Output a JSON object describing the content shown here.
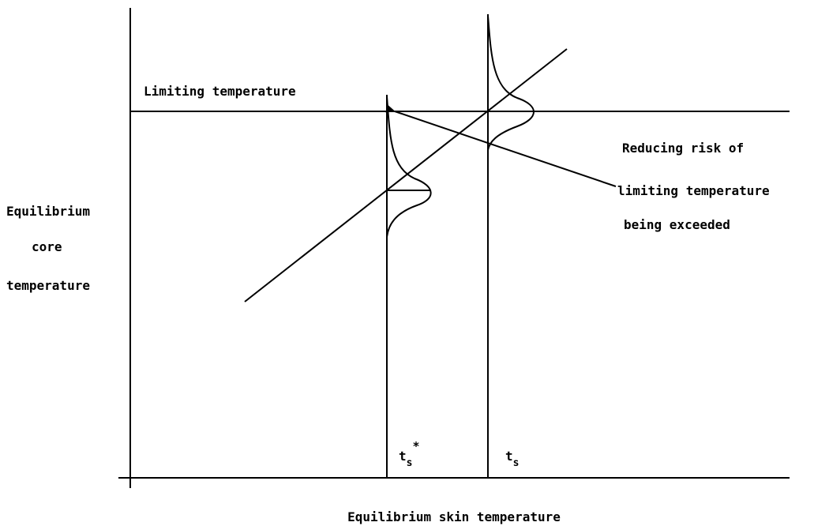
{
  "limit_label": "Limiting temperature",
  "y_axis_label": [
    "Equilibrium",
    "core",
    "temperature"
  ],
  "x_axis_label": "Equilibrium skin temperature",
  "annotation": [
    "Reducing risk of",
    "limiting temperature",
    "being exceeded"
  ],
  "marker_left": {
    "base": "t",
    "sub": "s",
    "sup": "*"
  },
  "marker_right": {
    "base": "t",
    "sub": "s"
  }
}
